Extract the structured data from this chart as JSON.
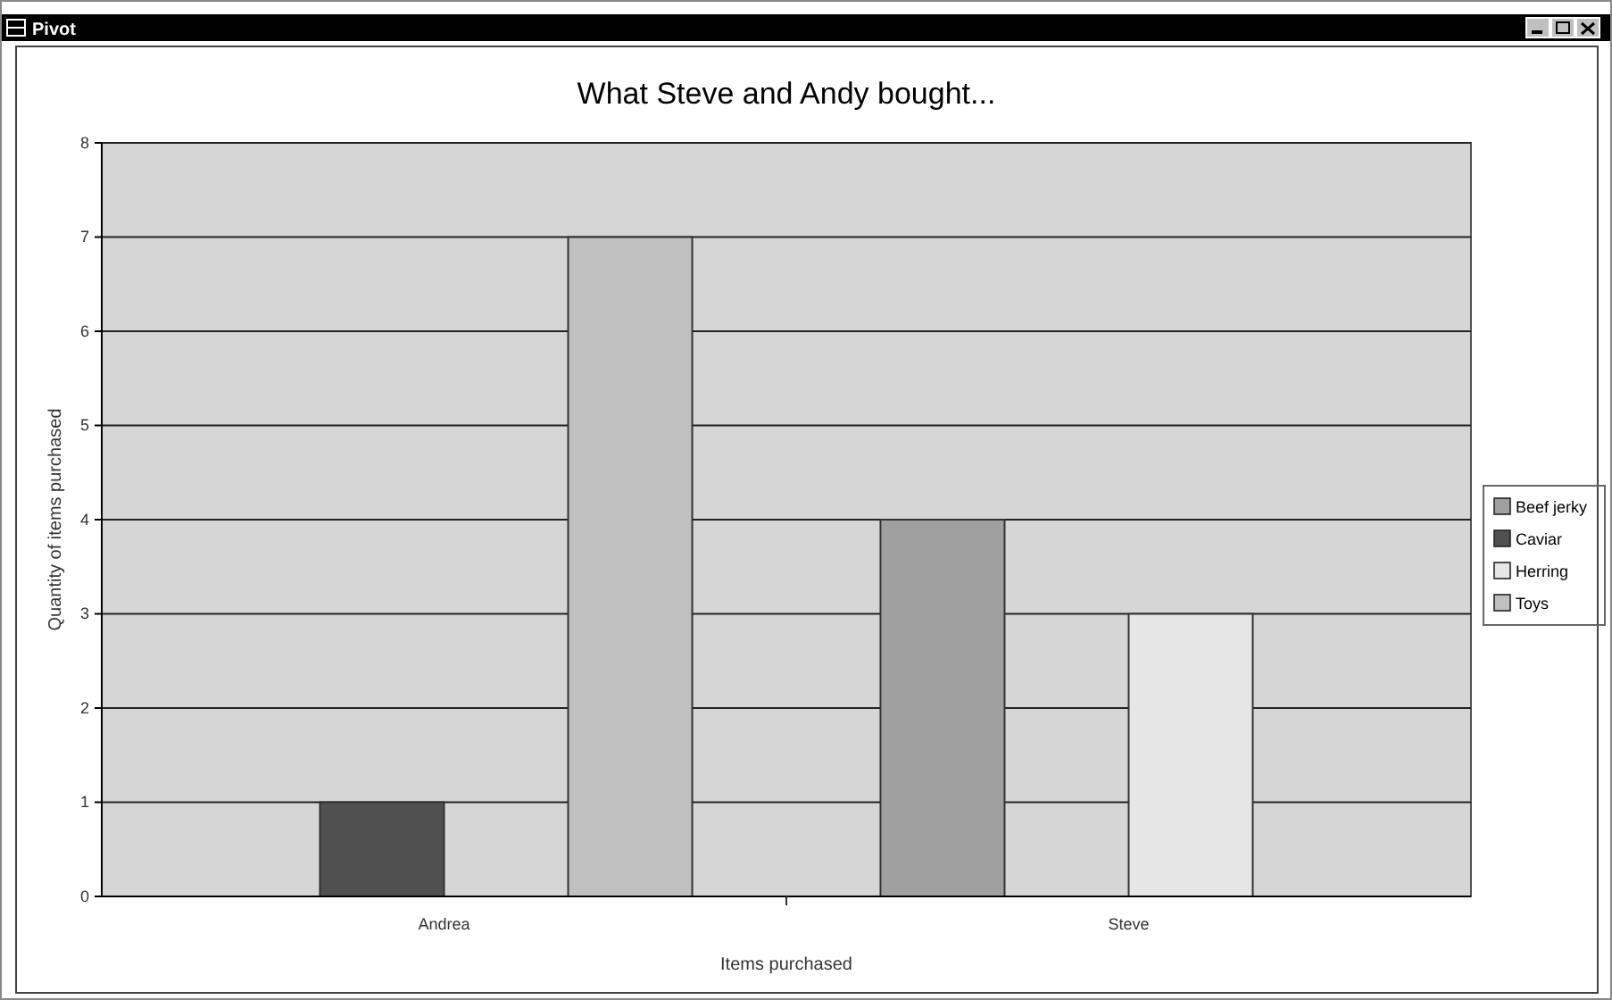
{
  "chart_data": {
    "type": "bar",
    "title": "What Steve and Andy bought...",
    "xlabel": "Items purchased",
    "ylabel": "Quantity of items purchased",
    "annotations": [
      "Pivot"
    ],
    "categories": [
      "Andrea",
      "Steve"
    ],
    "series": [
      {
        "name": "Beef jerky",
        "color": "#a0a0a0",
        "values": [
          null,
          4
        ]
      },
      {
        "name": "Caviar",
        "color": "#505050",
        "values": [
          1,
          null
        ]
      },
      {
        "name": "Herring",
        "color": "#e6e6e6",
        "values": [
          null,
          3
        ]
      },
      {
        "name": "Toys",
        "color": "#c0c0c0",
        "values": [
          7,
          null
        ]
      }
    ],
    "ylim": [
      0,
      8
    ],
    "yticks": [
      0,
      1,
      2,
      3,
      4,
      5,
      6,
      7,
      8
    ],
    "grid": "y",
    "legend": "right"
  }
}
